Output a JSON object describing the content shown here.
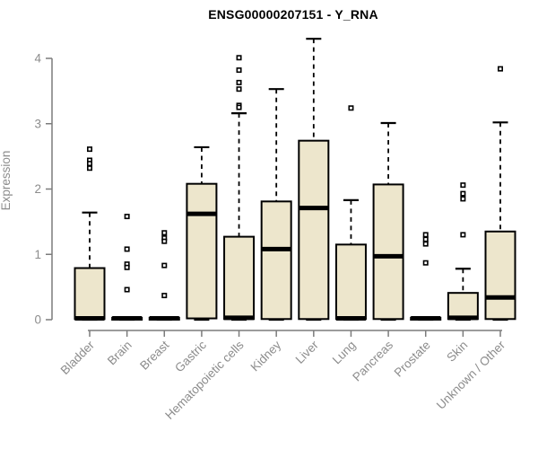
{
  "chart_data": {
    "type": "boxplot",
    "title": "ENSG00000207151 - Y_RNA",
    "ylabel": "Expression",
    "xlabel": "",
    "ylim": [
      0,
      4
    ],
    "yticks": [
      0,
      1,
      2,
      3,
      4
    ],
    "grid": false,
    "legend": "none",
    "categories": [
      "Bladder",
      "Brain",
      "Breast",
      "Gastric",
      "Hematopoietic cells",
      "Kidney",
      "Liver",
      "Lung",
      "Pancreas",
      "Prostate",
      "Skin",
      "Unknown / Other"
    ],
    "boxes": [
      {
        "category": "Bladder",
        "whislo": 0,
        "q1": 0.01,
        "med": 0.02,
        "q3": 0.79,
        "whishi": 1.64,
        "outliers": [
          2.61,
          2.44,
          2.39,
          2.32
        ]
      },
      {
        "category": "Brain",
        "whislo": 0,
        "q1": 0.0,
        "med": 0.02,
        "q3": 0.03,
        "whishi": 0.04,
        "outliers": [
          1.58,
          1.08,
          0.85,
          0.8,
          0.46
        ]
      },
      {
        "category": "Breast",
        "whislo": 0,
        "q1": 0.0,
        "med": 0.02,
        "q3": 0.03,
        "whishi": 0.04,
        "outliers": [
          1.33,
          1.25,
          1.2,
          0.83,
          0.37
        ]
      },
      {
        "category": "Gastric",
        "whislo": 0,
        "q1": 0.02,
        "med": 1.62,
        "q3": 2.08,
        "whishi": 2.64,
        "outliers": []
      },
      {
        "category": "Hematopoietic cells",
        "whislo": 0,
        "q1": 0.01,
        "med": 0.03,
        "q3": 1.27,
        "whishi": 3.16,
        "outliers": [
          4.01,
          3.82,
          3.63,
          3.53,
          3.28,
          3.25
        ]
      },
      {
        "category": "Kidney",
        "whislo": 0,
        "q1": 0.01,
        "med": 1.08,
        "q3": 1.81,
        "whishi": 3.53,
        "outliers": []
      },
      {
        "category": "Liver",
        "whislo": 0,
        "q1": 0.01,
        "med": 1.71,
        "q3": 2.74,
        "whishi": 4.3,
        "outliers": []
      },
      {
        "category": "Lung",
        "whislo": 0,
        "q1": 0.01,
        "med": 0.02,
        "q3": 1.15,
        "whishi": 1.83,
        "outliers": [
          3.24
        ]
      },
      {
        "category": "Pancreas",
        "whislo": 0,
        "q1": 0.01,
        "med": 0.97,
        "q3": 2.07,
        "whishi": 3.01,
        "outliers": []
      },
      {
        "category": "Prostate",
        "whislo": 0,
        "q1": 0.0,
        "med": 0.02,
        "q3": 0.03,
        "whishi": 0.04,
        "outliers": [
          1.3,
          1.23,
          1.16,
          0.87
        ]
      },
      {
        "category": "Skin",
        "whislo": 0,
        "q1": 0.01,
        "med": 0.03,
        "q3": 0.41,
        "whishi": 0.78,
        "outliers": [
          2.06,
          1.93,
          1.85,
          1.3
        ]
      },
      {
        "category": "Unknown / Other",
        "whislo": 0,
        "q1": 0.01,
        "med": 0.34,
        "q3": 1.35,
        "whishi": 3.02,
        "outliers": [
          3.84
        ]
      }
    ],
    "colors": {
      "box_fill": "#EDE6CC",
      "box_border": "#000000",
      "median": "#000000",
      "axis": "#7C7C7C",
      "tick_text": "#8C8C8C",
      "title_text": "#000000",
      "background": "#FFFFFF"
    }
  }
}
